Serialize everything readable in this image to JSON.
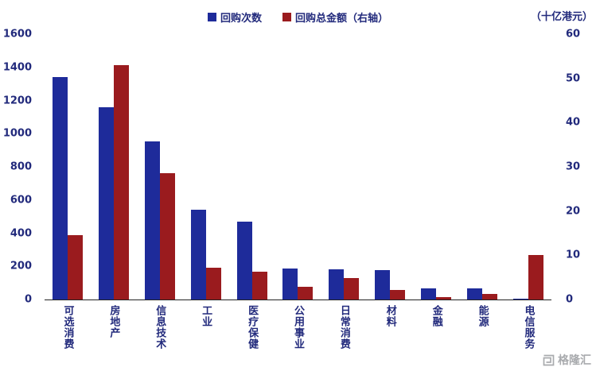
{
  "legend": [
    {
      "label": "回购次数",
      "color": "#1e2b9a"
    },
    {
      "label": "回购总金额（右轴）",
      "color": "#9a1b1e"
    }
  ],
  "watermark": {
    "text": "格隆汇"
  },
  "chart_data": {
    "type": "bar",
    "title": "",
    "categories": [
      "可选消费",
      "房地产",
      "信息技术",
      "工业",
      "医疗保健",
      "公用事业",
      "日常消费",
      "材料",
      "金融",
      "能源",
      "电信服务"
    ],
    "series": [
      {
        "name": "回购次数",
        "axis": "left",
        "color": "#1e2b9a",
        "values": [
          1340,
          1160,
          955,
          540,
          470,
          185,
          183,
          178,
          67,
          67,
          5
        ]
      },
      {
        "name": "回购总金额（右轴）",
        "axis": "right",
        "color": "#9a1b1e",
        "values": [
          14.5,
          53,
          28.5,
          7.2,
          6.3,
          2.9,
          4.8,
          2.2,
          0.5,
          1.2,
          10
        ]
      }
    ],
    "left_axis": {
      "min": 0,
      "max": 1600,
      "step": 200
    },
    "right_axis": {
      "min": 0,
      "max": 60,
      "step": 10,
      "label": "（十亿港元）"
    },
    "grid": false,
    "legend_position": "top"
  }
}
